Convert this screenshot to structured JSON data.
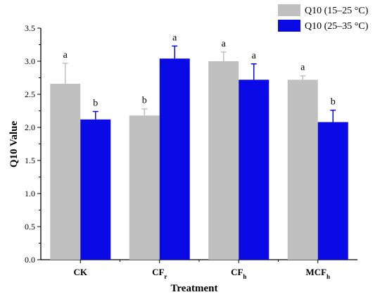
{
  "chart_data": {
    "type": "bar",
    "xlabel": "Treatment",
    "ylabel": "Q10 Value",
    "ylim": [
      0,
      3.5
    ],
    "yticks": [
      "0.0",
      "0.5",
      "1.0",
      "1.5",
      "2.0",
      "2.5",
      "3.0",
      "3.5"
    ],
    "categories": [
      {
        "main": "CK",
        "sub": ""
      },
      {
        "main": "CF",
        "sub": "r"
      },
      {
        "main": "CF",
        "sub": "h"
      },
      {
        "main": "MCF",
        "sub": "h"
      }
    ],
    "series": [
      {
        "name": "Q10 (15–25 °C)",
        "color": "#c0c0c0",
        "values": [
          2.66,
          2.18,
          3.0,
          2.72
        ],
        "errors": [
          0.31,
          0.1,
          0.14,
          0.06
        ],
        "labels": [
          "a",
          "b",
          "a",
          "a"
        ]
      },
      {
        "name": "Q10 (25–35 °C)",
        "color": "#0a0ae6",
        "values": [
          2.12,
          3.04,
          2.72,
          2.08
        ],
        "errors": [
          0.12,
          0.19,
          0.24,
          0.18
        ],
        "labels": [
          "b",
          "a",
          "a",
          "b"
        ]
      }
    ],
    "grid": false,
    "legend": "top-right"
  }
}
